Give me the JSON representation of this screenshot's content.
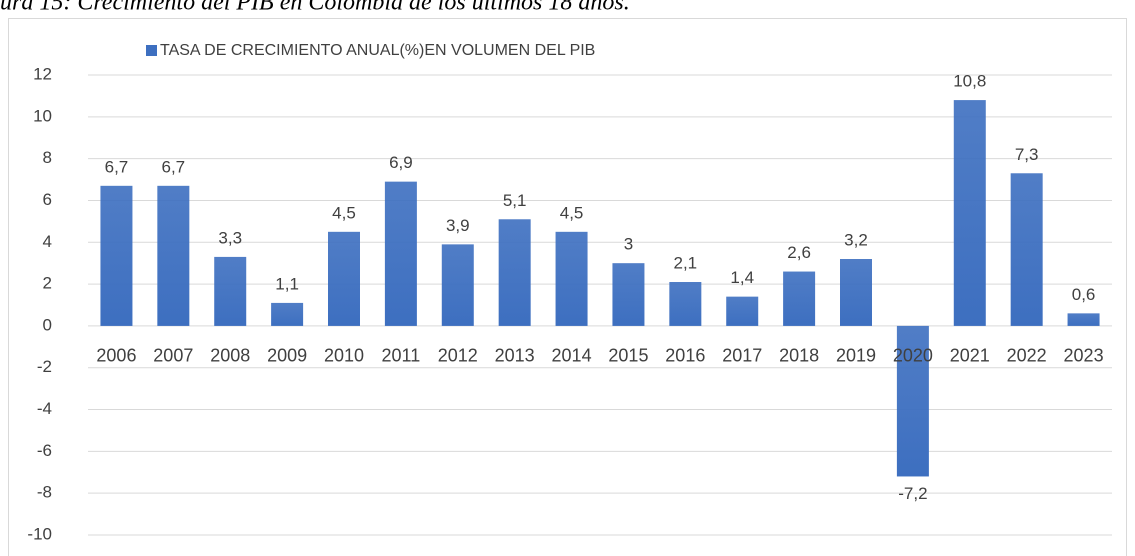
{
  "chart_data": {
    "type": "bar",
    "title": "ura 15: Crecimiento del PIB en Colombia de los últimos 18 años.",
    "categories": [
      "2006",
      "2007",
      "2008",
      "2009",
      "2010",
      "2011",
      "2012",
      "2013",
      "2014",
      "2015",
      "2016",
      "2017",
      "2018",
      "2019",
      "2020",
      "2021",
      "2022",
      "2023"
    ],
    "series": [
      {
        "name": "TASA DE CRECIMIENTO ANUAL(%)EN VOLUMEN DEL PIB",
        "color": "#3d6fc0",
        "values": [
          6.7,
          6.7,
          3.3,
          1.1,
          4.5,
          6.9,
          3.9,
          5.1,
          4.5,
          3,
          2.1,
          1.4,
          2.6,
          3.2,
          -7.2,
          10.8,
          7.3,
          0.6
        ],
        "value_labels": [
          "6,7",
          "6,7",
          "3,3",
          "1,1",
          "4,5",
          "6,9",
          "3,9",
          "5,1",
          "4,5",
          "3",
          "2,1",
          "1,4",
          "2,6",
          "3,2",
          "-7,2",
          "10,8",
          "7,3",
          "0,6"
        ]
      }
    ],
    "ylim": [
      -10,
      12
    ],
    "yticks": [
      -10,
      -8,
      -6,
      -4,
      -2,
      0,
      2,
      4,
      6,
      8,
      10,
      12
    ],
    "grid": true
  }
}
